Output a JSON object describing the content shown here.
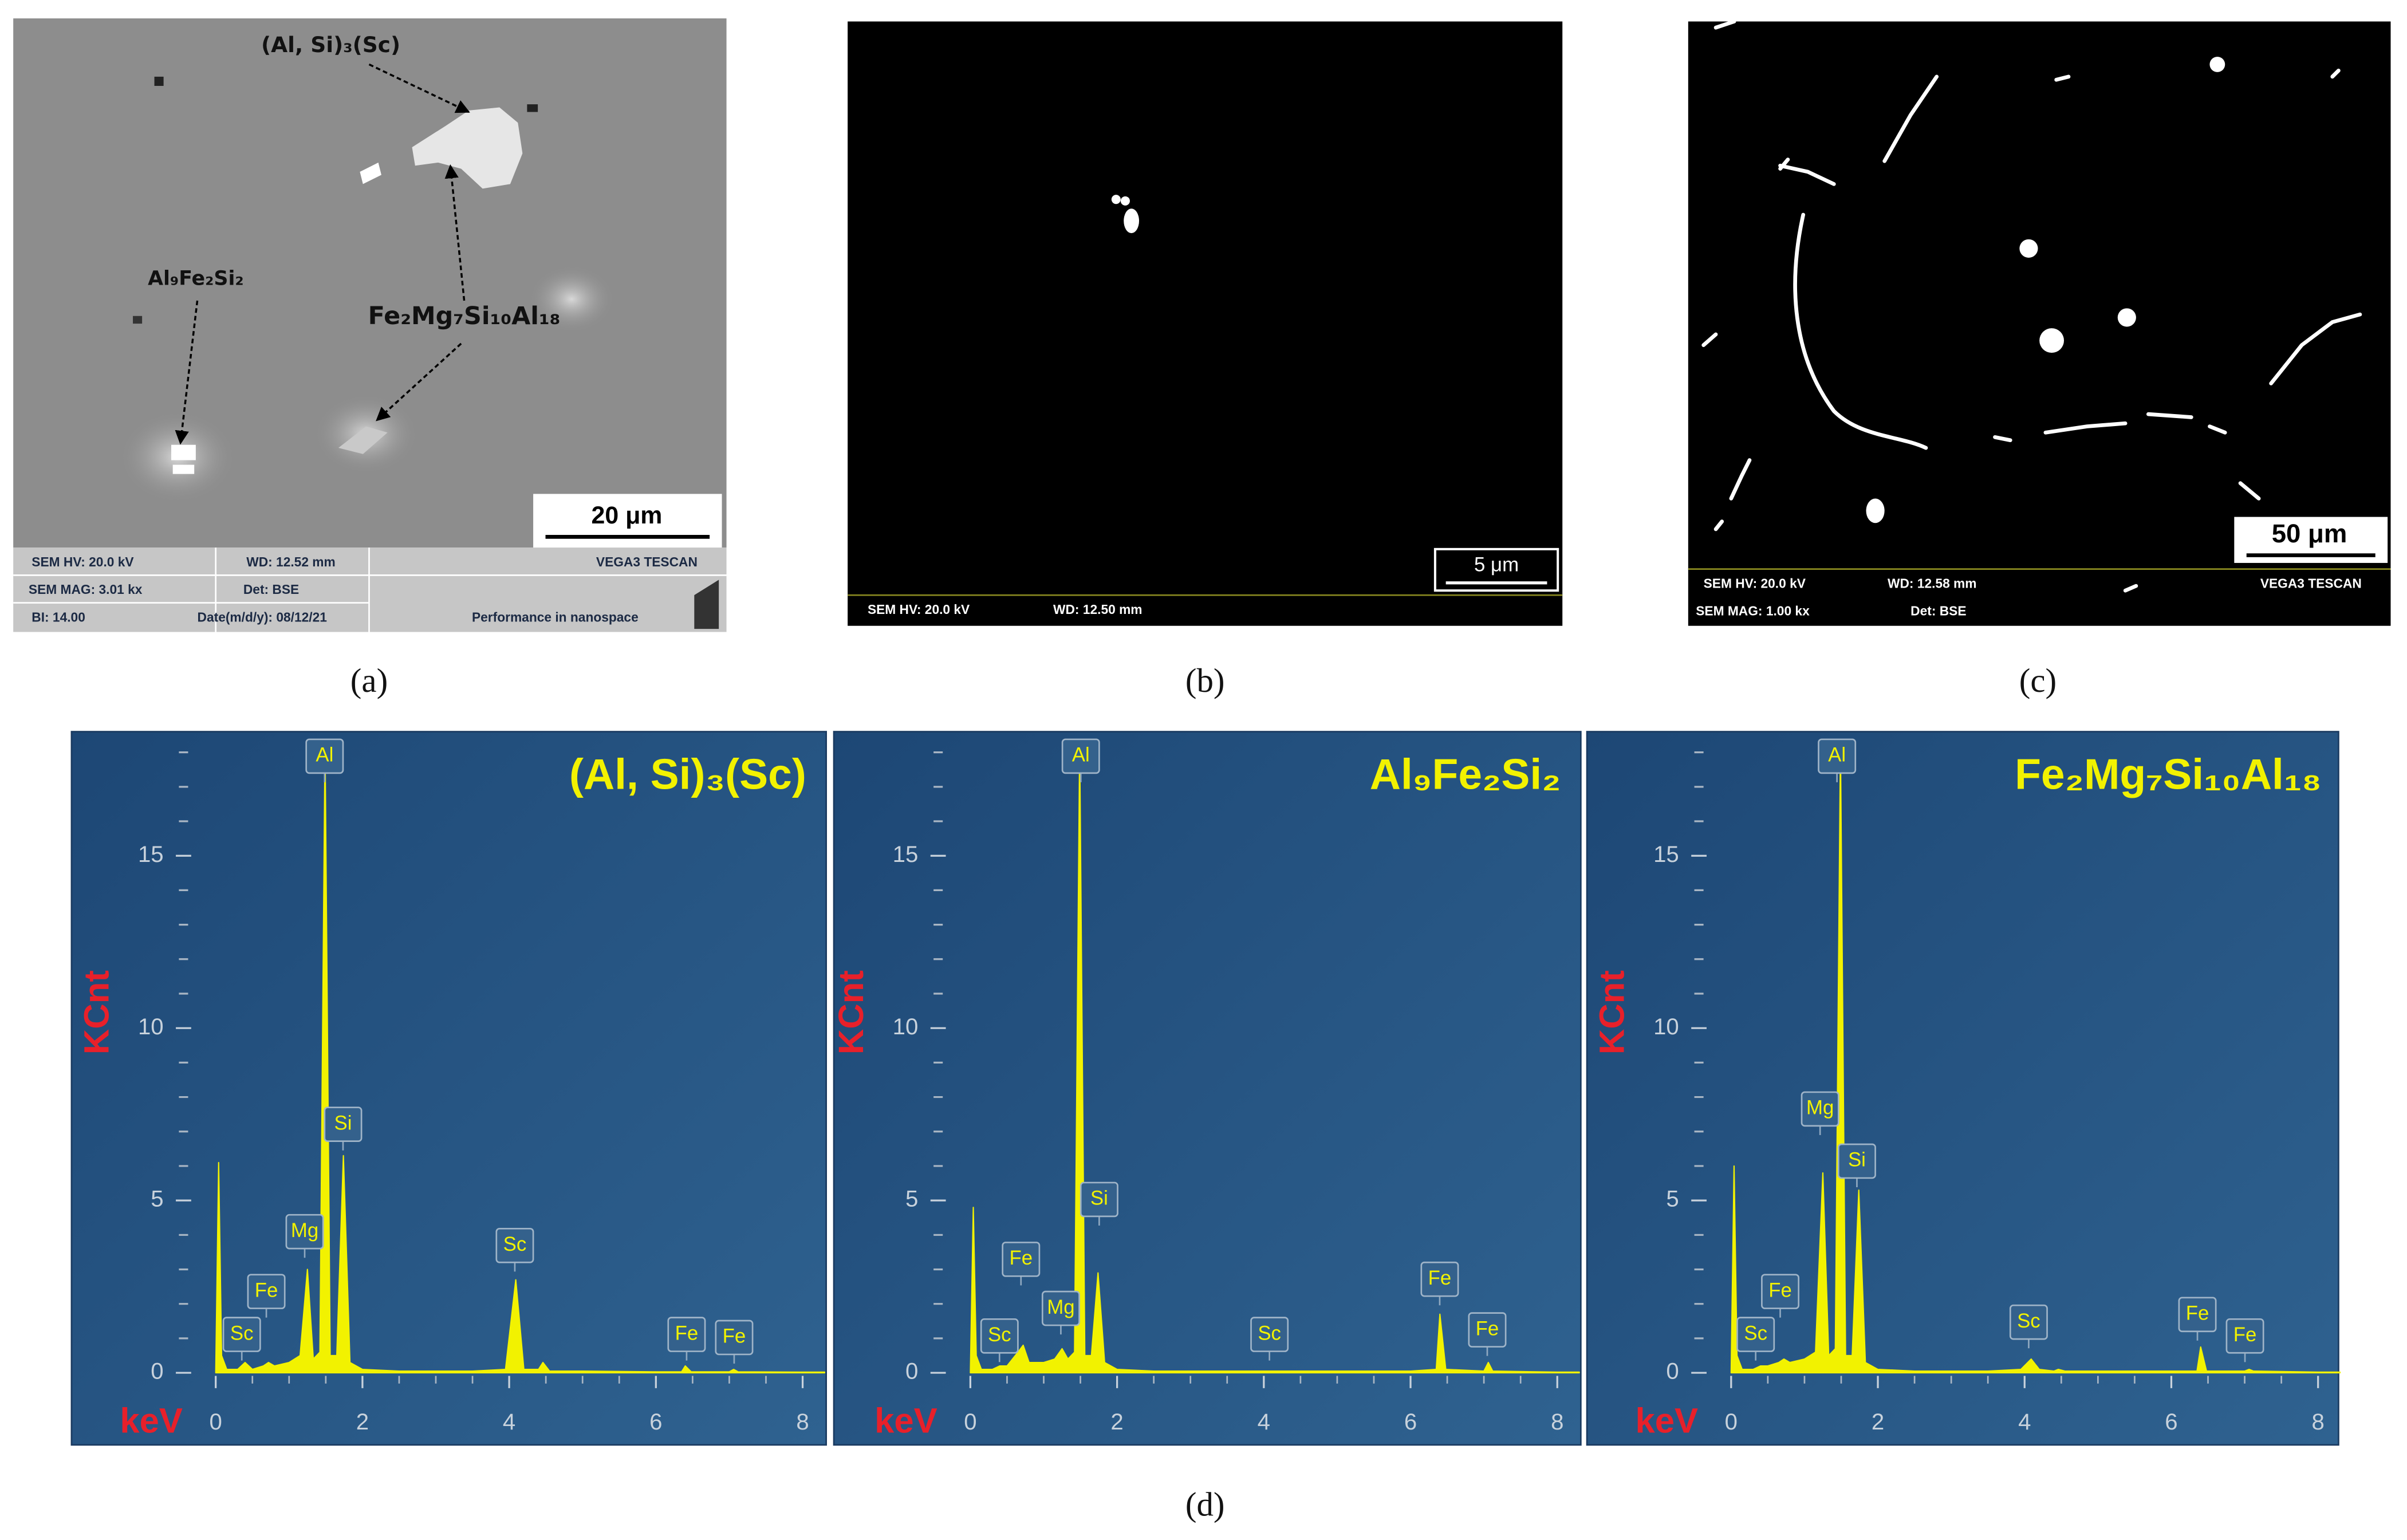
{
  "panels": [
    {
      "caption": "(a)",
      "labels": [
        "(Al, Si)₃(Sc)",
        "Al₉Fe₂Si₂",
        "Fe₂Mg₇Si₁₀Al₁₈"
      ],
      "scale": "20 μm",
      "info": [
        "SEM HV: 20.0 kV",
        "WD: 12.52 mm",
        "VEGA3 TESCAN",
        "SEM MAG: 3.01 kx",
        "Det: BSE",
        "BI: 14.00",
        "Date(m/d/y): 08/12/21",
        "Performance in nanospace"
      ]
    },
    {
      "caption": "(b)",
      "scale": "5 μm",
      "info": [
        "SEM HV: 20.0 kV",
        "WD: 12.50 mm"
      ]
    },
    {
      "caption": "(c)",
      "scale": "50 μm",
      "info": [
        "SEM HV: 20.0 kV",
        "WD: 12.58 mm",
        "VEGA3 TESCAN",
        "SEM MAG: 1.00 kx",
        "Det: BSE"
      ]
    },
    {
      "caption": "(d)"
    }
  ],
  "chart_data": [
    {
      "type": "area",
      "title": "(Al, Si)₃(Sc)",
      "x_label": "keV",
      "y_label": "KCnt",
      "color": "#f2f200",
      "x": [
        0,
        0.04,
        0.08,
        0.15,
        0.3,
        0.4,
        0.5,
        0.65,
        0.72,
        0.8,
        1.0,
        1.15,
        1.25,
        1.33,
        1.42,
        1.49,
        1.56,
        1.65,
        1.74,
        1.83,
        2.0,
        2.5,
        3.0,
        3.5,
        3.95,
        4.09,
        4.2,
        4.4,
        4.46,
        4.55,
        5.0,
        6.0,
        6.35,
        6.4,
        6.48,
        7.0,
        7.06,
        7.12,
        8.0,
        8.3
      ],
      "values": [
        0,
        6.1,
        0.5,
        0.1,
        0.1,
        0.3,
        0.1,
        0.2,
        0.3,
        0.2,
        0.3,
        0.5,
        3.0,
        0.4,
        0.6,
        18.3,
        0.5,
        0.5,
        6.3,
        0.3,
        0.1,
        0.05,
        0.05,
        0.05,
        0.1,
        2.7,
        0.1,
        0.1,
        0.3,
        0.05,
        0.05,
        0.03,
        0.03,
        0.2,
        0.03,
        0.03,
        0.1,
        0.03,
        0.02,
        0.02
      ],
      "peak_labels": [
        "Al",
        "Si",
        "Mg",
        "Fe",
        "Sc",
        "Sc",
        "Fe",
        "Fe"
      ],
      "xlim": [
        0,
        8.3
      ],
      "ylim": [
        0,
        18.6
      ],
      "xticks": [
        0,
        2,
        4,
        6,
        8
      ],
      "yticks": [
        0,
        5,
        10,
        15
      ],
      "xminorticks": [
        0.5,
        1,
        1.5,
        2.5,
        3,
        3.5,
        4.5,
        5,
        5.5,
        6.5,
        7,
        7.5
      ],
      "yminorticks": [
        1,
        2,
        3,
        4,
        6,
        7,
        8,
        9,
        11,
        12,
        13,
        14,
        16,
        17,
        18
      ]
    },
    {
      "type": "area",
      "title": "Al₉Fe₂Si₂",
      "x_label": "keV",
      "y_label": "KCnt",
      "color": "#f2f200",
      "x": [
        0,
        0.04,
        0.08,
        0.15,
        0.3,
        0.4,
        0.5,
        0.65,
        0.72,
        0.8,
        1.0,
        1.15,
        1.25,
        1.33,
        1.42,
        1.49,
        1.56,
        1.65,
        1.74,
        1.83,
        2.0,
        2.5,
        3.0,
        3.5,
        3.95,
        4.09,
        4.2,
        4.4,
        4.46,
        4.55,
        5.0,
        6.0,
        6.35,
        6.4,
        6.48,
        7.0,
        7.06,
        7.12,
        8.0,
        8.3
      ],
      "values": [
        0,
        4.8,
        0.5,
        0.1,
        0.1,
        0.2,
        0.2,
        0.6,
        0.8,
        0.3,
        0.3,
        0.4,
        0.7,
        0.4,
        0.6,
        18.3,
        0.5,
        0.5,
        2.9,
        0.3,
        0.1,
        0.05,
        0.05,
        0.05,
        0.05,
        0.05,
        0.05,
        0.05,
        0.05,
        0.05,
        0.05,
        0.05,
        0.1,
        1.7,
        0.1,
        0.05,
        0.3,
        0.05,
        0.02,
        0.02
      ],
      "peak_labels": [
        "Al",
        "Fe",
        "Sc",
        "Mg",
        "Si",
        "Sc",
        "Fe",
        "Fe"
      ],
      "xlim": [
        0,
        8.3
      ],
      "ylim": [
        0,
        18.6
      ],
      "xticks": [
        0,
        2,
        4,
        6,
        8
      ],
      "yticks": [
        0,
        5,
        10,
        15
      ],
      "xminorticks": [
        0.5,
        1,
        1.5,
        2.5,
        3,
        3.5,
        4.5,
        5,
        5.5,
        6.5,
        7,
        7.5
      ],
      "yminorticks": [
        1,
        2,
        3,
        4,
        6,
        7,
        8,
        9,
        11,
        12,
        13,
        14,
        16,
        17,
        18
      ]
    },
    {
      "type": "area",
      "title": "Fe₂Mg₇Si₁₀Al₁₈",
      "x_label": "keV",
      "y_label": "KCnt",
      "color": "#f2f200",
      "x": [
        0,
        0.04,
        0.08,
        0.15,
        0.3,
        0.4,
        0.5,
        0.65,
        0.72,
        0.8,
        1.0,
        1.15,
        1.25,
        1.33,
        1.42,
        1.49,
        1.56,
        1.65,
        1.74,
        1.83,
        2.0,
        2.5,
        3.0,
        3.5,
        3.95,
        4.09,
        4.2,
        4.4,
        4.46,
        4.55,
        5.0,
        6.0,
        6.35,
        6.4,
        6.48,
        7.0,
        7.06,
        7.12,
        8.0,
        8.3
      ],
      "values": [
        0,
        6.0,
        0.5,
        0.1,
        0.1,
        0.2,
        0.2,
        0.3,
        0.4,
        0.3,
        0.4,
        0.6,
        5.8,
        0.5,
        0.7,
        18.3,
        0.5,
        0.5,
        5.3,
        0.3,
        0.1,
        0.05,
        0.05,
        0.05,
        0.1,
        0.4,
        0.1,
        0.05,
        0.1,
        0.05,
        0.05,
        0.05,
        0.05,
        0.75,
        0.05,
        0.05,
        0.1,
        0.05,
        0.02,
        0.02
      ],
      "peak_labels": [
        "Al",
        "Mg",
        "Si",
        "Fe",
        "Sc",
        "Sc",
        "Fe",
        "Fe"
      ],
      "xlim": [
        0,
        8.3
      ],
      "ylim": [
        0,
        18.6
      ],
      "xticks": [
        0,
        2,
        4,
        6,
        8
      ],
      "yticks": [
        0,
        5,
        10,
        15
      ],
      "xminorticks": [
        0.5,
        1,
        1.5,
        2.5,
        3,
        3.5,
        4.5,
        5,
        5.5,
        6.5,
        7,
        7.5
      ],
      "yminorticks": [
        1,
        2,
        3,
        4,
        6,
        7,
        8,
        9,
        11,
        12,
        13,
        14,
        16,
        17,
        18
      ]
    }
  ]
}
